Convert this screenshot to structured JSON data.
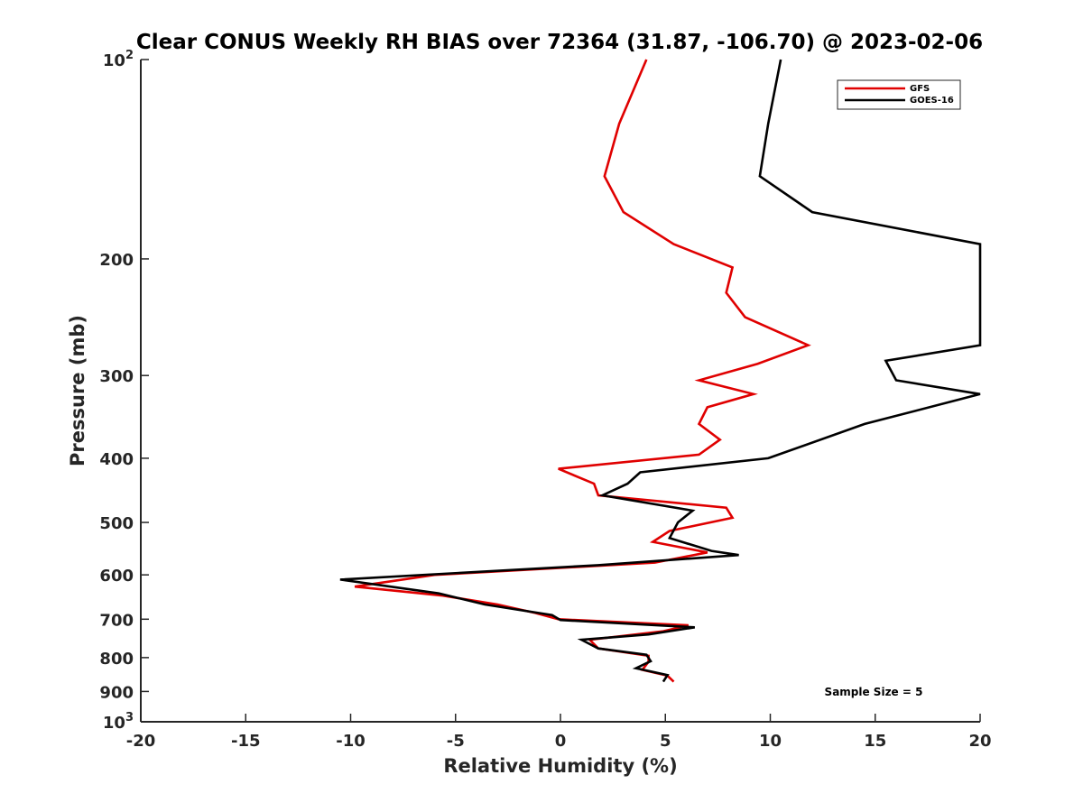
{
  "chart_data": {
    "type": "line",
    "title": "Clear CONUS Weekly RH BIAS over 72364 (31.87, -106.70) @ 2023-02-06",
    "xlabel": "Relative Humidity (%)",
    "ylabel": "Pressure (mb)",
    "xlim": [
      -20,
      20
    ],
    "ylim": [
      100,
      1000
    ],
    "y_scale": "log",
    "y_reversed": true,
    "x_ticks": [
      "-20",
      "-15",
      "-10",
      "-5",
      "0",
      "5",
      "10",
      "15",
      "20"
    ],
    "y_ticks": [
      {
        "value": 100,
        "label": "10",
        "sup": "2"
      },
      {
        "value": 200,
        "label": "200",
        "sup": ""
      },
      {
        "value": 300,
        "label": "300",
        "sup": ""
      },
      {
        "value": 400,
        "label": "400",
        "sup": ""
      },
      {
        "value": 500,
        "label": "500",
        "sup": ""
      },
      {
        "value": 600,
        "label": "600",
        "sup": ""
      },
      {
        "value": 700,
        "label": "700",
        "sup": ""
      },
      {
        "value": 800,
        "label": "800",
        "sup": ""
      },
      {
        "value": 900,
        "label": "900",
        "sup": ""
      },
      {
        "value": 1000,
        "label": "10",
        "sup": "3"
      }
    ],
    "grid": false,
    "legend_position": "top-right",
    "annotation": "Sample Size = 5",
    "series": [
      {
        "name": "GFS",
        "color": "#e00000",
        "points": [
          [
            4.1,
            100
          ],
          [
            2.8,
            125
          ],
          [
            2.1,
            150
          ],
          [
            3.0,
            170
          ],
          [
            5.4,
            190
          ],
          [
            8.2,
            206
          ],
          [
            7.9,
            225
          ],
          [
            8.8,
            245
          ],
          [
            11.8,
            270
          ],
          [
            9.4,
            288
          ],
          [
            6.6,
            305
          ],
          [
            9.2,
            320
          ],
          [
            7.0,
            335
          ],
          [
            6.6,
            355
          ],
          [
            7.6,
            375
          ],
          [
            6.6,
            395
          ],
          [
            -0.1,
            415
          ],
          [
            1.6,
            437
          ],
          [
            1.8,
            455
          ],
          [
            7.9,
            475
          ],
          [
            8.2,
            492
          ],
          [
            5.2,
            515
          ],
          [
            4.4,
            535
          ],
          [
            7.0,
            555
          ],
          [
            4.5,
            575
          ],
          [
            -6.0,
            600
          ],
          [
            -9.8,
            625
          ],
          [
            -5.6,
            645
          ],
          [
            -3.0,
            665
          ],
          [
            -1.2,
            685
          ],
          [
            -0.1,
            700
          ],
          [
            6.1,
            715
          ],
          [
            4.9,
            730
          ],
          [
            1.4,
            752
          ],
          [
            1.8,
            775
          ],
          [
            4.2,
            795
          ],
          [
            4.2,
            812
          ],
          [
            3.9,
            835
          ],
          [
            5.1,
            852
          ],
          [
            5.4,
            870
          ]
        ]
      },
      {
        "name": "GOES-16",
        "color": "#000000",
        "points": [
          [
            10.5,
            100
          ],
          [
            9.9,
            125
          ],
          [
            9.5,
            150
          ],
          [
            12.0,
            170
          ],
          [
            20.0,
            190
          ],
          [
            20.0,
            270
          ],
          [
            15.5,
            285
          ],
          [
            16.0,
            305
          ],
          [
            20.0,
            320
          ],
          [
            14.5,
            355
          ],
          [
            9.9,
            400
          ],
          [
            3.8,
            420
          ],
          [
            3.2,
            437
          ],
          [
            2.0,
            455
          ],
          [
            6.3,
            480
          ],
          [
            5.6,
            500
          ],
          [
            5.2,
            528
          ],
          [
            7.2,
            552
          ],
          [
            8.5,
            560
          ],
          [
            1.8,
            580
          ],
          [
            -10.5,
            610
          ],
          [
            -5.8,
            640
          ],
          [
            -3.6,
            665
          ],
          [
            -0.4,
            690
          ],
          [
            0.0,
            702
          ],
          [
            6.4,
            720
          ],
          [
            4.2,
            738
          ],
          [
            1.0,
            752
          ],
          [
            1.8,
            775
          ],
          [
            4.1,
            792
          ],
          [
            4.3,
            810
          ],
          [
            3.6,
            830
          ],
          [
            5.1,
            850
          ],
          [
            4.9,
            870
          ]
        ]
      }
    ]
  }
}
